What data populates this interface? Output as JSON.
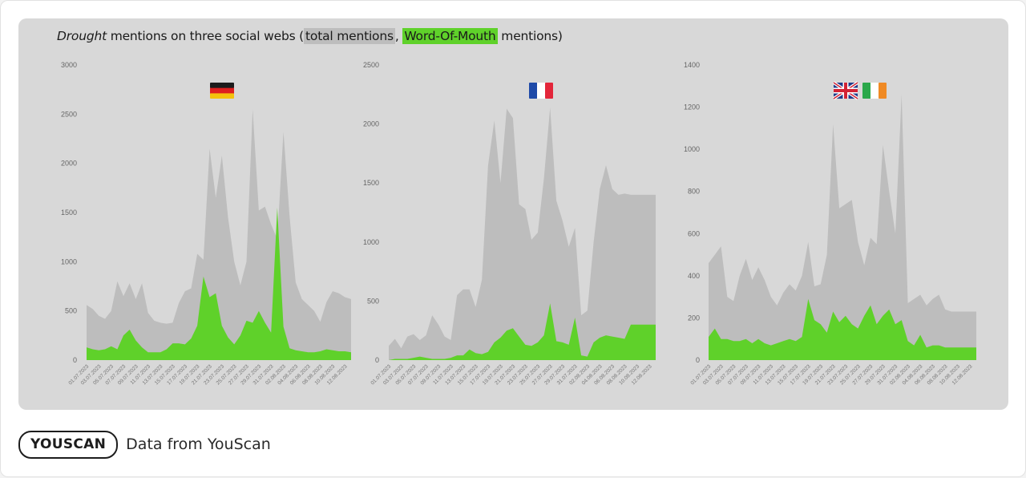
{
  "title": {
    "prefix_italic": "Drought",
    "prefix_rest": " mentions on three social webs (",
    "total_label": "total mentions",
    "separator": ", ",
    "wom_label": "Word-Of-Mouth",
    "suffix": " mentions)"
  },
  "colors": {
    "total": "#bdbdbd",
    "wom": "#5fd12a",
    "panel": "#d8d8d8"
  },
  "footer": {
    "logo_text": "YOUSCAN",
    "caption": "Data from YouScan"
  },
  "chart_data": [
    {
      "type": "area",
      "title": "",
      "flag": "germany-flag-icon",
      "flags": [
        "germany-flag-icon"
      ],
      "x": [
        "01.07.2023",
        "02.07.2023",
        "03.07.2023",
        "04.07.2023",
        "05.07.2023",
        "06.07.2023",
        "07.07.2023",
        "08.07.2023",
        "09.07.2023",
        "10.07.2023",
        "11.07.2023",
        "12.07.2023",
        "13.07.2023",
        "14.07.2023",
        "15.07.2023",
        "16.07.2023",
        "17.07.2023",
        "18.07.2023",
        "19.07.2023",
        "20.07.2023",
        "21.07.2023",
        "22.07.2023",
        "23.07.2023",
        "24.07.2023",
        "25.07.2023",
        "26.07.2023",
        "27.07.2023",
        "28.07.2023",
        "29.07.2023",
        "30.07.2023",
        "31.07.2023",
        "01.08.2023",
        "02.08.2023",
        "03.08.2023",
        "04.08.2023",
        "05.08.2023",
        "06.08.2023",
        "07.08.2023",
        "08.08.2023",
        "09.08.2023",
        "10.08.2023",
        "11.08.2023",
        "12.08.2023",
        "13.08.2023"
      ],
      "xtick_labels": [
        "01.07.2023",
        "03.07.2023",
        "05.07.2023",
        "07.07.2023",
        "09.07.2023",
        "11.07.2023",
        "13.07.2023",
        "15.07.2023",
        "17.07.2023",
        "19.07.2023",
        "21.07.2023",
        "23.07.2023",
        "25.07.2023",
        "27.07.2023",
        "29.07.2023",
        "31.07.2023",
        "02.08.2023",
        "04.08.2023",
        "06.08.2023",
        "08.08.2023",
        "10.08.2023",
        "12.08.2023"
      ],
      "yticks": [
        "0",
        "500",
        "1000",
        "1500",
        "2000",
        "2500",
        "3000"
      ],
      "ylim": [
        0,
        3000
      ],
      "series": [
        {
          "name": "total mentions",
          "values": [
            560,
            520,
            450,
            420,
            500,
            800,
            650,
            780,
            620,
            780,
            480,
            400,
            380,
            370,
            380,
            580,
            700,
            730,
            1080,
            1020,
            2150,
            1650,
            2080,
            1450,
            1000,
            760,
            1000,
            2550,
            1520,
            1560,
            1380,
            1230,
            2320,
            1460,
            790,
            620,
            560,
            500,
            390,
            590,
            700,
            680,
            640,
            620
          ]
        },
        {
          "name": "Word-Of-Mouth mentions",
          "values": [
            130,
            110,
            100,
            110,
            140,
            110,
            250,
            310,
            200,
            130,
            80,
            80,
            80,
            110,
            170,
            170,
            160,
            220,
            350,
            850,
            640,
            680,
            350,
            230,
            160,
            250,
            400,
            380,
            500,
            380,
            280,
            1550,
            340,
            120,
            100,
            90,
            80,
            80,
            90,
            110,
            100,
            90,
            90,
            80
          ]
        }
      ]
    },
    {
      "type": "area",
      "title": "",
      "flag": "france-flag-icon",
      "flags": [
        "france-flag-icon"
      ],
      "x": [
        "01.07.2023",
        "02.07.2023",
        "03.07.2023",
        "04.07.2023",
        "05.07.2023",
        "06.07.2023",
        "07.07.2023",
        "08.07.2023",
        "09.07.2023",
        "10.07.2023",
        "11.07.2023",
        "12.07.2023",
        "13.07.2023",
        "14.07.2023",
        "15.07.2023",
        "16.07.2023",
        "17.07.2023",
        "18.07.2023",
        "19.07.2023",
        "20.07.2023",
        "21.07.2023",
        "22.07.2023",
        "23.07.2023",
        "24.07.2023",
        "25.07.2023",
        "26.07.2023",
        "27.07.2023",
        "28.07.2023",
        "29.07.2023",
        "30.07.2023",
        "31.07.2023",
        "01.08.2023",
        "02.08.2023",
        "03.08.2023",
        "04.08.2023",
        "05.08.2023",
        "06.08.2023",
        "07.08.2023",
        "08.08.2023",
        "09.08.2023",
        "10.08.2023",
        "11.08.2023",
        "12.08.2023",
        "13.08.2023"
      ],
      "xtick_labels": [
        "01.07.2023",
        "03.07.2023",
        "05.07.2023",
        "07.07.2023",
        "09.07.2023",
        "11.07.2023",
        "13.07.2023",
        "15.07.2023",
        "17.07.2023",
        "19.07.2023",
        "21.07.2023",
        "23.07.2023",
        "25.07.2023",
        "27.07.2023",
        "29.07.2023",
        "31.07.2023",
        "02.08.2023",
        "04.08.2023",
        "06.08.2023",
        "08.08.2023",
        "10.08.2023",
        "12.08.2023"
      ],
      "yticks": [
        "0",
        "500",
        "1000",
        "1500",
        "2000",
        "2500"
      ],
      "ylim": [
        0,
        2500
      ],
      "series": [
        {
          "name": "total mentions",
          "values": [
            120,
            180,
            100,
            200,
            220,
            170,
            210,
            380,
            300,
            200,
            170,
            550,
            600,
            600,
            450,
            680,
            1650,
            2030,
            1500,
            2130,
            2050,
            1320,
            1280,
            1020,
            1080,
            1540,
            2140,
            1350,
            1180,
            960,
            1120,
            380,
            420,
            1000,
            1450,
            1650,
            1450,
            1400,
            1410,
            1400,
            1400,
            1400,
            1400,
            1400
          ]
        },
        {
          "name": "Word-Of-Mouth mentions",
          "values": [
            0,
            10,
            10,
            10,
            20,
            30,
            20,
            10,
            10,
            10,
            20,
            40,
            40,
            90,
            60,
            50,
            70,
            150,
            190,
            250,
            270,
            200,
            130,
            120,
            150,
            210,
            480,
            160,
            150,
            130,
            360,
            40,
            30,
            150,
            190,
            210,
            200,
            190,
            180,
            300,
            300,
            300,
            300,
            300
          ]
        }
      ]
    },
    {
      "type": "area",
      "title": "",
      "flag": "uk-flag-icon",
      "flags": [
        "uk-flag-icon",
        "ireland-flag-icon"
      ],
      "x": [
        "01.07.2023",
        "02.07.2023",
        "03.07.2023",
        "04.07.2023",
        "05.07.2023",
        "06.07.2023",
        "07.07.2023",
        "08.07.2023",
        "09.07.2023",
        "10.07.2023",
        "11.07.2023",
        "12.07.2023",
        "13.07.2023",
        "14.07.2023",
        "15.07.2023",
        "16.07.2023",
        "17.07.2023",
        "18.07.2023",
        "19.07.2023",
        "20.07.2023",
        "21.07.2023",
        "22.07.2023",
        "23.07.2023",
        "24.07.2023",
        "25.07.2023",
        "26.07.2023",
        "27.07.2023",
        "28.07.2023",
        "29.07.2023",
        "30.07.2023",
        "31.07.2023",
        "01.08.2023",
        "02.08.2023",
        "03.08.2023",
        "04.08.2023",
        "05.08.2023",
        "06.08.2023",
        "07.08.2023",
        "08.08.2023",
        "09.08.2023",
        "10.08.2023",
        "11.08.2023",
        "12.08.2023",
        "13.08.2023"
      ],
      "xtick_labels": [
        "01.07.2023",
        "03.07.2023",
        "05.07.2023",
        "07.07.2023",
        "09.07.2023",
        "11.07.2023",
        "13.07.2023",
        "15.07.2023",
        "17.07.2023",
        "19.07.2023",
        "21.07.2023",
        "23.07.2023",
        "25.07.2023",
        "27.07.2023",
        "29.07.2023",
        "31.07.2023",
        "02.08.2023",
        "04.08.2023",
        "06.08.2023",
        "08.08.2023",
        "10.08.2023",
        "12.08.2023"
      ],
      "yticks": [
        "0",
        "200",
        "400",
        "600",
        "800",
        "1000",
        "1200",
        "1400"
      ],
      "ylim": [
        0,
        1400
      ],
      "series": [
        {
          "name": "total mentions",
          "values": [
            460,
            500,
            540,
            300,
            280,
            400,
            480,
            380,
            440,
            380,
            300,
            260,
            320,
            360,
            330,
            400,
            560,
            350,
            360,
            500,
            1120,
            720,
            740,
            760,
            560,
            450,
            580,
            550,
            1020,
            800,
            600,
            1260,
            270,
            290,
            310,
            260,
            290,
            310,
            240,
            230,
            230,
            230,
            230,
            230
          ]
        },
        {
          "name": "Word-Of-Mouth mentions",
          "values": [
            110,
            150,
            100,
            100,
            90,
            90,
            100,
            80,
            100,
            80,
            70,
            80,
            90,
            100,
            90,
            110,
            290,
            190,
            170,
            130,
            230,
            180,
            210,
            170,
            150,
            210,
            260,
            170,
            210,
            240,
            170,
            190,
            90,
            70,
            120,
            60,
            70,
            70,
            60,
            60,
            60,
            60,
            60,
            60
          ]
        }
      ]
    }
  ]
}
